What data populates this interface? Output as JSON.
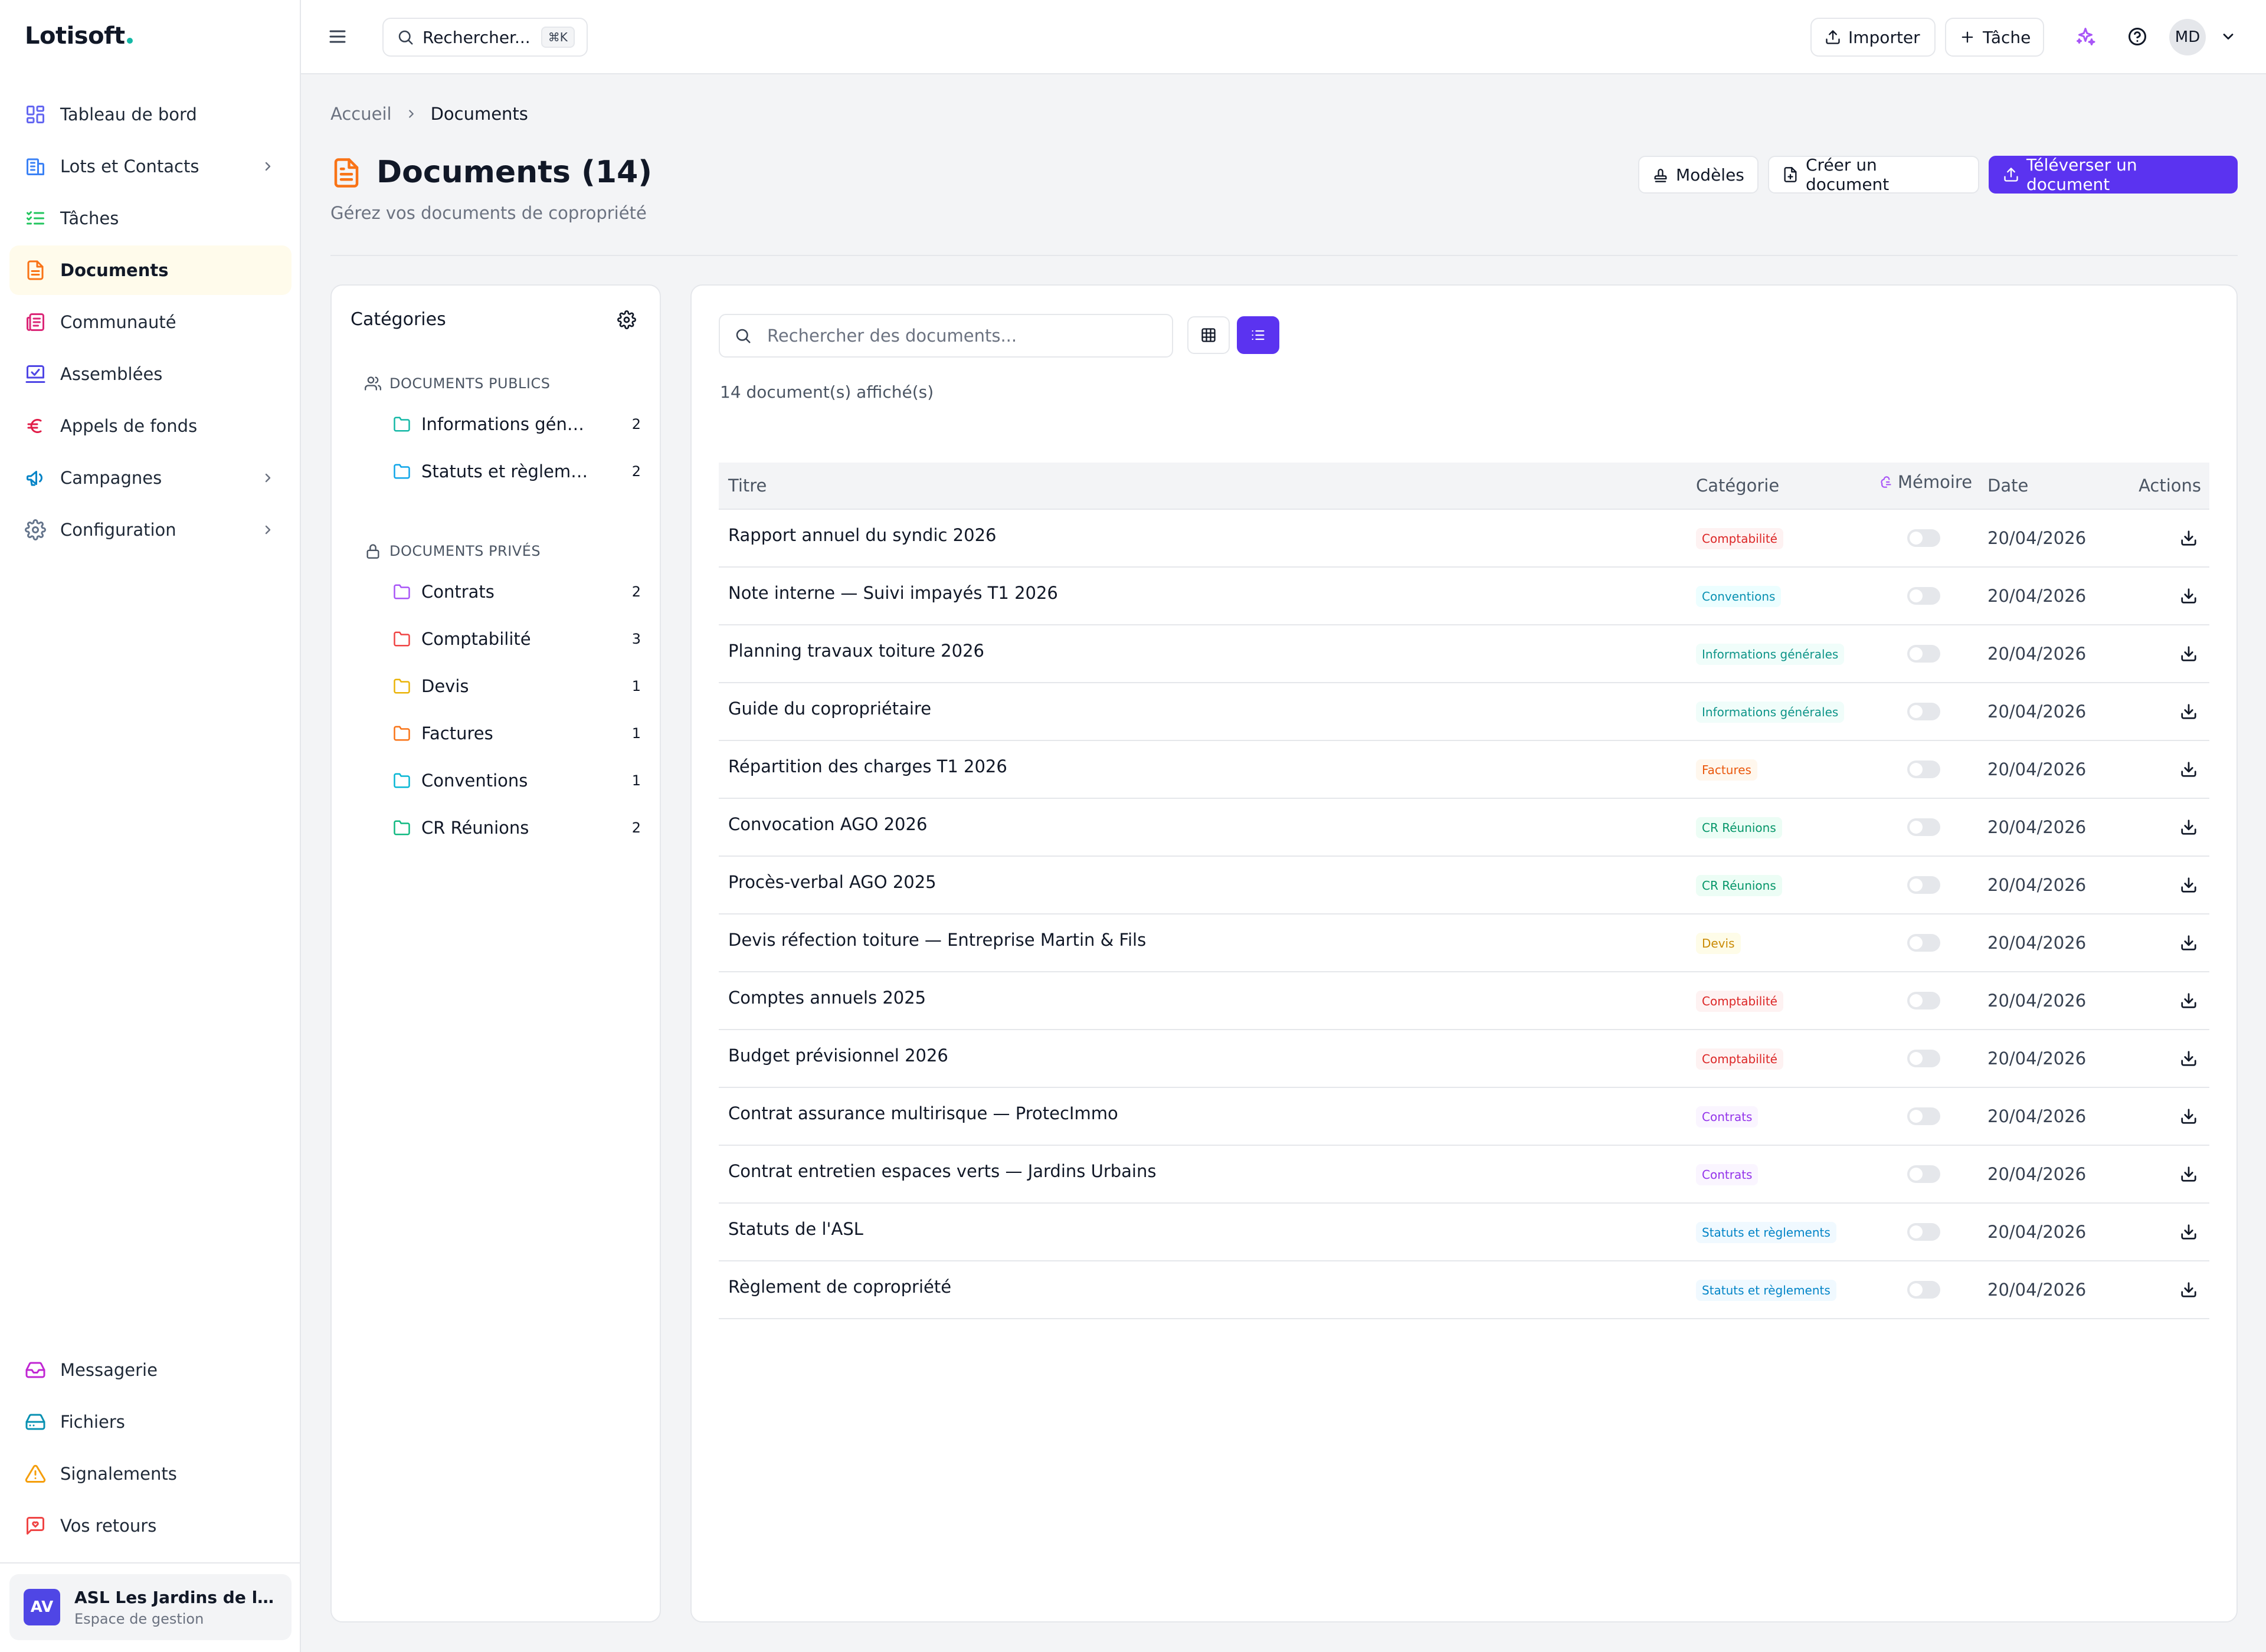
{
  "app": {
    "brand": "Lotisoft"
  },
  "sidebar": {
    "items": [
      {
        "label": "Tableau de bord",
        "icon": "dashboard-icon",
        "color": "#6366f1"
      },
      {
        "label": "Lots et Contacts",
        "icon": "building-icon",
        "color": "#3b82f6",
        "chevron": true
      },
      {
        "label": "Tâches",
        "icon": "tasks-icon",
        "color": "#22c55e"
      },
      {
        "label": "Documents",
        "icon": "document-icon",
        "color": "#f97316",
        "active": true
      },
      {
        "label": "Communauté",
        "icon": "newspaper-icon",
        "color": "#db2777"
      },
      {
        "label": "Assemblées",
        "icon": "vote-icon",
        "color": "#4f46e5"
      },
      {
        "label": "Appels de fonds",
        "icon": "euro-icon",
        "color": "#e11d48"
      },
      {
        "label": "Campagnes",
        "icon": "megaphone-icon",
        "color": "#0284c7",
        "chevron": true
      },
      {
        "label": "Configuration",
        "icon": "gear-icon",
        "color": "#64748b",
        "chevron": true
      }
    ],
    "bottom_items": [
      {
        "label": "Messagerie",
        "icon": "inbox-icon",
        "color": "#c026d3"
      },
      {
        "label": "Fichiers",
        "icon": "drive-icon",
        "color": "#0891b2"
      },
      {
        "label": "Signalements",
        "icon": "warning-icon",
        "color": "#f59e0b"
      },
      {
        "label": "Vos retours",
        "icon": "feedback-icon",
        "color": "#ef4444"
      }
    ],
    "org": {
      "initials": "AV",
      "name": "ASL Les Jardins de la ...",
      "subtitle": "Espace de gestion"
    }
  },
  "topbar": {
    "search_label": "Rechercher...",
    "search_shortcut": "⌘K",
    "import_label": "Importer",
    "task_label": "Tâche",
    "user_initials": "MD"
  },
  "breadcrumb": {
    "home": "Accueil",
    "current": "Documents"
  },
  "page": {
    "title": "Documents (14)",
    "subtitle": "Gérez vos documents de copropriété",
    "templates_label": "Modèles",
    "create_label": "Créer un document",
    "upload_label": "Téléverser un document"
  },
  "categories": {
    "title": "Catégories",
    "public_label": "DOCUMENTS PUBLICS",
    "private_label": "DOCUMENTS PRIVÉS",
    "public": [
      {
        "name": "Informations générales",
        "count": "2",
        "color": "#14b8a6"
      },
      {
        "name": "Statuts et règlements",
        "count": "2",
        "color": "#0ea5e9"
      }
    ],
    "private": [
      {
        "name": "Contrats",
        "count": "2",
        "color": "#a855f7"
      },
      {
        "name": "Comptabilité",
        "count": "3",
        "color": "#ef4444"
      },
      {
        "name": "Devis",
        "count": "1",
        "color": "#eab308"
      },
      {
        "name": "Factures",
        "count": "1",
        "color": "#f97316"
      },
      {
        "name": "Conventions",
        "count": "1",
        "color": "#06b6d4"
      },
      {
        "name": "CR Réunions",
        "count": "2",
        "color": "#10b981"
      }
    ]
  },
  "documents": {
    "search_placeholder": "Rechercher des documents...",
    "count_text": "14 document(s) affiché(s)",
    "columns": {
      "title": "Titre",
      "category": "Catégorie",
      "memory": "Mémoire",
      "date": "Date",
      "actions": "Actions"
    },
    "rows": [
      {
        "title": "Rapport annuel du syndic 2026",
        "category": "Comptabilité",
        "cat_color": "#dc2626",
        "cat_bg": "#fef2f2",
        "date": "20/04/2026"
      },
      {
        "title": "Note interne — Suivi impayés T1 2026",
        "category": "Conventions",
        "cat_color": "#0891b2",
        "cat_bg": "#ecfeff",
        "date": "20/04/2026"
      },
      {
        "title": "Planning travaux toiture 2026",
        "category": "Informations générales",
        "cat_color": "#0d9488",
        "cat_bg": "#f0fdfa",
        "date": "20/04/2026"
      },
      {
        "title": "Guide du copropriétaire",
        "category": "Informations générales",
        "cat_color": "#0d9488",
        "cat_bg": "#f0fdfa",
        "date": "20/04/2026"
      },
      {
        "title": "Répartition des charges T1 2026",
        "category": "Factures",
        "cat_color": "#ea580c",
        "cat_bg": "#fff7ed",
        "date": "20/04/2026"
      },
      {
        "title": "Convocation AGO 2026",
        "category": "CR Réunions",
        "cat_color": "#059669",
        "cat_bg": "#ecfdf5",
        "date": "20/04/2026"
      },
      {
        "title": "Procès-verbal AGO 2025",
        "category": "CR Réunions",
        "cat_color": "#059669",
        "cat_bg": "#ecfdf5",
        "date": "20/04/2026"
      },
      {
        "title": "Devis réfection toiture — Entreprise Martin & Fils",
        "category": "Devis",
        "cat_color": "#ca8a04",
        "cat_bg": "#fefce8",
        "date": "20/04/2026"
      },
      {
        "title": "Comptes annuels 2025",
        "category": "Comptabilité",
        "cat_color": "#dc2626",
        "cat_bg": "#fef2f2",
        "date": "20/04/2026"
      },
      {
        "title": "Budget prévisionnel 2026",
        "category": "Comptabilité",
        "cat_color": "#dc2626",
        "cat_bg": "#fef2f2",
        "date": "20/04/2026"
      },
      {
        "title": "Contrat assurance multirisque — ProtecImmo",
        "category": "Contrats",
        "cat_color": "#9333ea",
        "cat_bg": "#faf5ff",
        "date": "20/04/2026"
      },
      {
        "title": "Contrat entretien espaces verts — Jardins Urbains",
        "category": "Contrats",
        "cat_color": "#9333ea",
        "cat_bg": "#faf5ff",
        "date": "20/04/2026"
      },
      {
        "title": "Statuts de l'ASL",
        "category": "Statuts et règlements",
        "cat_color": "#0284c7",
        "cat_bg": "#f0f9ff",
        "date": "20/04/2026"
      },
      {
        "title": "Règlement de copropriété",
        "category": "Statuts et règlements",
        "cat_color": "#0284c7",
        "cat_bg": "#f0f9ff",
        "date": "20/04/2026"
      }
    ]
  },
  "colors": {
    "accent": "#5b33f0",
    "active_bg": "#fffbeb"
  }
}
